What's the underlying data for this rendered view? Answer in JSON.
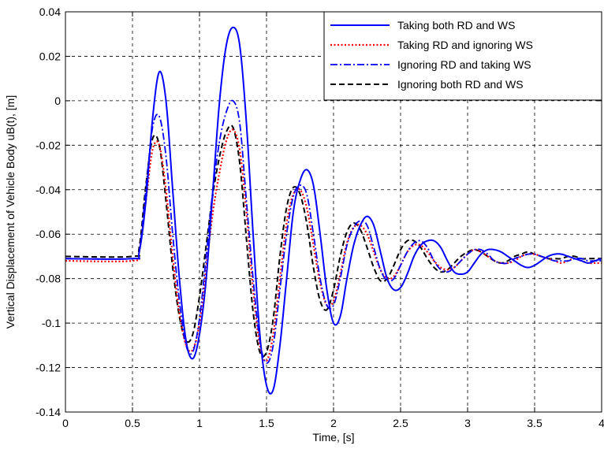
{
  "chart_data": {
    "type": "line",
    "title": "",
    "xlabel": "Time, [s]",
    "ylabel": "Vertical Displacement of Vehicle Body uB(t), [m]",
    "xlim": [
      0,
      4
    ],
    "ylim": [
      -0.14,
      0.04
    ],
    "xticks": [
      0,
      0.5,
      1,
      1.5,
      2,
      2.5,
      3,
      3.5,
      4
    ],
    "xtick_labels": [
      "0",
      "0.5",
      "1",
      "1.5",
      "2",
      "2.5",
      "3",
      "3.5",
      "4"
    ],
    "yticks": [
      -0.14,
      -0.12,
      -0.1,
      -0.08,
      -0.06,
      -0.04,
      -0.02,
      0,
      0.02,
      0.04
    ],
    "ytick_labels": [
      "-0.14",
      "-0.12",
      "-0.1",
      "-0.08",
      "-0.06",
      "-0.04",
      "-0.02",
      "0",
      "0.02",
      "0.04"
    ],
    "grid": true,
    "legend_position": "top-right",
    "series": [
      {
        "name": "Taking both RD and WS",
        "color": "#0000ff",
        "dash": "solid",
        "x": [
          0,
          0.5,
          0.55,
          0.6,
          0.65,
          0.7,
          0.75,
          0.8,
          0.85,
          0.9,
          0.95,
          1.0,
          1.05,
          1.1,
          1.15,
          1.2,
          1.25,
          1.3,
          1.35,
          1.4,
          1.45,
          1.5,
          1.55,
          1.6,
          1.65,
          1.7,
          1.75,
          1.8,
          1.85,
          1.9,
          1.95,
          2.0,
          2.05,
          2.1,
          2.15,
          2.2,
          2.25,
          2.3,
          2.35,
          2.4,
          2.45,
          2.5,
          2.55,
          2.6,
          2.65,
          2.7,
          2.75,
          2.8,
          2.85,
          2.9,
          2.95,
          3.0,
          3.05,
          3.1,
          3.15,
          3.2,
          3.25,
          3.3,
          3.35,
          3.4,
          3.45,
          3.5,
          3.55,
          3.6,
          3.65,
          3.7,
          3.75,
          3.8,
          3.85,
          3.9,
          3.95,
          4.0
        ],
        "y": [
          -0.071,
          -0.071,
          -0.068,
          -0.045,
          -0.008,
          0.013,
          0.0,
          -0.04,
          -0.08,
          -0.108,
          -0.116,
          -0.105,
          -0.08,
          -0.04,
          0.0,
          0.025,
          0.033,
          0.025,
          -0.01,
          -0.06,
          -0.105,
          -0.128,
          -0.13,
          -0.11,
          -0.08,
          -0.05,
          -0.036,
          -0.031,
          -0.038,
          -0.06,
          -0.085,
          -0.1,
          -0.097,
          -0.08,
          -0.065,
          -0.056,
          -0.052,
          -0.056,
          -0.068,
          -0.08,
          -0.085,
          -0.084,
          -0.078,
          -0.07,
          -0.065,
          -0.063,
          -0.063,
          -0.066,
          -0.072,
          -0.077,
          -0.078,
          -0.077,
          -0.073,
          -0.069,
          -0.067,
          -0.067,
          -0.068,
          -0.07,
          -0.072,
          -0.074,
          -0.075,
          -0.074,
          -0.072,
          -0.07,
          -0.069,
          -0.069,
          -0.07,
          -0.071,
          -0.072,
          -0.073,
          -0.072,
          -0.071
        ]
      },
      {
        "name": "Taking RD and ignoring WS",
        "color": "#ff0000",
        "dash": "dotted",
        "x": [
          0,
          0.5,
          0.55,
          0.6,
          0.65,
          0.7,
          0.75,
          0.8,
          0.85,
          0.9,
          0.95,
          1.0,
          1.05,
          1.1,
          1.15,
          1.2,
          1.25,
          1.3,
          1.35,
          1.4,
          1.45,
          1.5,
          1.55,
          1.6,
          1.65,
          1.7,
          1.75,
          1.8,
          1.85,
          1.9,
          1.95,
          2.0,
          2.05,
          2.1,
          2.15,
          2.2,
          2.25,
          2.3,
          2.35,
          2.4,
          2.45,
          2.5,
          2.55,
          2.6,
          2.65,
          2.7,
          2.75,
          2.8,
          2.85,
          2.9,
          2.95,
          3.0,
          3.05,
          3.1,
          3.15,
          3.2,
          3.25,
          3.3,
          3.35,
          3.4,
          3.45,
          3.5,
          3.55,
          3.6,
          3.65,
          3.7,
          3.75,
          3.8,
          3.85,
          3.9,
          3.95,
          4.0
        ],
        "y": [
          -0.072,
          -0.072,
          -0.068,
          -0.045,
          -0.022,
          -0.02,
          -0.04,
          -0.07,
          -0.095,
          -0.11,
          -0.112,
          -0.1,
          -0.075,
          -0.05,
          -0.032,
          -0.018,
          -0.013,
          -0.022,
          -0.05,
          -0.085,
          -0.11,
          -0.117,
          -0.105,
          -0.08,
          -0.055,
          -0.042,
          -0.04,
          -0.048,
          -0.065,
          -0.082,
          -0.092,
          -0.09,
          -0.078,
          -0.064,
          -0.057,
          -0.056,
          -0.06,
          -0.068,
          -0.076,
          -0.08,
          -0.079,
          -0.074,
          -0.068,
          -0.065,
          -0.065,
          -0.068,
          -0.072,
          -0.075,
          -0.076,
          -0.075,
          -0.072,
          -0.069,
          -0.067,
          -0.068,
          -0.07,
          -0.072,
          -0.073,
          -0.073,
          -0.072,
          -0.07,
          -0.069,
          -0.069,
          -0.07,
          -0.071,
          -0.072,
          -0.073,
          -0.072,
          -0.071,
          -0.072,
          -0.073,
          -0.073,
          -0.073
        ]
      },
      {
        "name": "Ignoring RD and taking WS",
        "color": "#0000ff",
        "dash": "dashdot",
        "x": [
          0,
          0.5,
          0.55,
          0.6,
          0.65,
          0.7,
          0.75,
          0.8,
          0.85,
          0.9,
          0.95,
          1.0,
          1.05,
          1.1,
          1.15,
          1.2,
          1.25,
          1.3,
          1.35,
          1.4,
          1.45,
          1.5,
          1.55,
          1.6,
          1.65,
          1.7,
          1.75,
          1.8,
          1.85,
          1.9,
          1.95,
          2.0,
          2.05,
          2.1,
          2.15,
          2.2,
          2.25,
          2.3,
          2.35,
          2.4,
          2.45,
          2.5,
          2.55,
          2.6,
          2.65,
          2.7,
          2.75,
          2.8,
          2.85,
          2.9,
          2.95,
          3.0,
          3.05,
          3.1,
          3.15,
          3.2,
          3.25,
          3.3,
          3.35,
          3.4,
          3.45,
          3.5,
          3.55,
          3.6,
          3.65,
          3.7,
          3.75,
          3.8,
          3.85,
          3.9,
          3.95,
          4.0
        ],
        "y": [
          -0.071,
          -0.071,
          -0.068,
          -0.04,
          -0.012,
          -0.007,
          -0.025,
          -0.06,
          -0.09,
          -0.11,
          -0.113,
          -0.098,
          -0.07,
          -0.04,
          -0.018,
          -0.005,
          0.0,
          -0.01,
          -0.045,
          -0.08,
          -0.108,
          -0.118,
          -0.11,
          -0.085,
          -0.06,
          -0.043,
          -0.038,
          -0.042,
          -0.06,
          -0.08,
          -0.092,
          -0.092,
          -0.08,
          -0.065,
          -0.057,
          -0.054,
          -0.056,
          -0.066,
          -0.076,
          -0.081,
          -0.08,
          -0.074,
          -0.068,
          -0.064,
          -0.063,
          -0.066,
          -0.072,
          -0.076,
          -0.077,
          -0.075,
          -0.072,
          -0.069,
          -0.067,
          -0.067,
          -0.069,
          -0.072,
          -0.073,
          -0.073,
          -0.071,
          -0.07,
          -0.069,
          -0.069,
          -0.07,
          -0.071,
          -0.072,
          -0.072,
          -0.072,
          -0.071,
          -0.071,
          -0.072,
          -0.072,
          -0.072
        ]
      },
      {
        "name": "Ignoring both RD and WS",
        "color": "#000000",
        "dash": "dashed",
        "x": [
          0,
          0.5,
          0.55,
          0.6,
          0.65,
          0.7,
          0.75,
          0.8,
          0.85,
          0.9,
          0.95,
          1.0,
          1.05,
          1.1,
          1.15,
          1.2,
          1.25,
          1.3,
          1.35,
          1.4,
          1.45,
          1.5,
          1.55,
          1.6,
          1.65,
          1.7,
          1.75,
          1.8,
          1.85,
          1.9,
          1.95,
          2.0,
          2.05,
          2.1,
          2.15,
          2.2,
          2.25,
          2.3,
          2.35,
          2.4,
          2.45,
          2.5,
          2.55,
          2.6,
          2.65,
          2.7,
          2.75,
          2.8,
          2.85,
          2.9,
          2.95,
          3.0,
          3.05,
          3.1,
          3.15,
          3.2,
          3.25,
          3.3,
          3.35,
          3.4,
          3.45,
          3.5,
          3.55,
          3.6,
          3.65,
          3.7,
          3.75,
          3.8,
          3.85,
          3.9,
          3.95,
          4.0
        ],
        "y": [
          -0.07,
          -0.07,
          -0.066,
          -0.038,
          -0.017,
          -0.02,
          -0.045,
          -0.075,
          -0.097,
          -0.108,
          -0.105,
          -0.088,
          -0.065,
          -0.042,
          -0.025,
          -0.014,
          -0.012,
          -0.028,
          -0.062,
          -0.095,
          -0.113,
          -0.113,
          -0.098,
          -0.07,
          -0.048,
          -0.039,
          -0.042,
          -0.055,
          -0.075,
          -0.09,
          -0.094,
          -0.085,
          -0.07,
          -0.059,
          -0.055,
          -0.058,
          -0.066,
          -0.075,
          -0.081,
          -0.08,
          -0.074,
          -0.067,
          -0.063,
          -0.063,
          -0.066,
          -0.071,
          -0.075,
          -0.077,
          -0.076,
          -0.073,
          -0.07,
          -0.068,
          -0.067,
          -0.068,
          -0.07,
          -0.072,
          -0.073,
          -0.072,
          -0.07,
          -0.069,
          -0.068,
          -0.069,
          -0.07,
          -0.071,
          -0.071,
          -0.071,
          -0.07,
          -0.07,
          -0.071,
          -0.071,
          -0.071,
          -0.071
        ]
      }
    ]
  }
}
